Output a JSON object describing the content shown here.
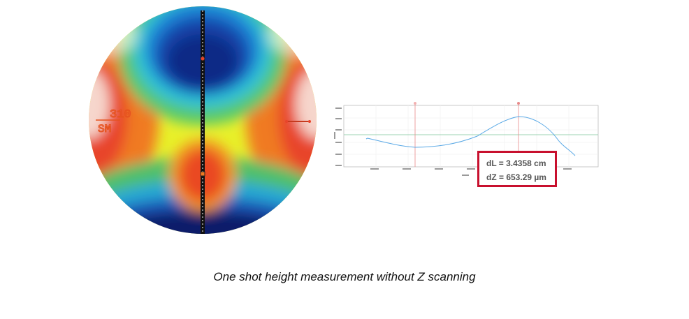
{
  "image": {
    "engraving_line1": "310",
    "engraving_line2": "SM"
  },
  "measurement": {
    "dl": "dL = 3.4358 cm",
    "dz": "dZ = 653.29 µm"
  },
  "caption": "One shot height measurement without Z scanning",
  "colors": {
    "highlight_border": "#c8102e",
    "profile_line": "#5aa9e6",
    "cursor_line": "#e88a8a",
    "level_line": "#7cc59a"
  }
}
